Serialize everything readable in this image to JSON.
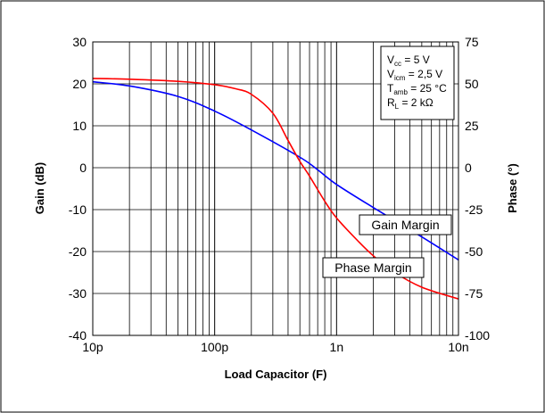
{
  "chart_data": {
    "type": "line",
    "xlabel": "Load Capacitor (F)",
    "ylabel_left": "Gain (dB)",
    "ylabel_right": "Phase (°)",
    "x_scale": "log",
    "xlim": [
      1e-11,
      1e-08
    ],
    "x_tick_labels": [
      "10p",
      "100p",
      "1n",
      "10n"
    ],
    "ylim_left": [
      -40,
      30
    ],
    "y_left_ticks": [
      "30",
      "20",
      "10",
      "0",
      "-10",
      "-20",
      "-30",
      "-40"
    ],
    "ylim_right": [
      -100,
      75
    ],
    "y_right_ticks": [
      "75",
      "50",
      "25",
      "0",
      "-25",
      "-50",
      "-75",
      "-100"
    ],
    "grid": true,
    "conditions": {
      "lines": [
        {
          "main": "V",
          "sub": "cc",
          "rest": " = 5 V"
        },
        {
          "main": "V",
          "sub": "icm",
          "rest": " = 2,5 V"
        },
        {
          "main": "T",
          "sub": "amb",
          "rest": " = 25 °C"
        },
        {
          "main": "R",
          "sub": "L",
          "rest": " = 2 kΩ"
        }
      ]
    },
    "annotations": [
      "Gain Margin",
      "Phase Margin"
    ],
    "series": [
      {
        "label": "Gain Margin",
        "color": "#0000ff",
        "axis": "left",
        "x": [
          1e-11,
          2e-11,
          5e-11,
          1e-10,
          2e-10,
          5e-10,
          7e-10,
          1e-09,
          2e-09,
          5e-09,
          1e-08
        ],
        "y": [
          20.5,
          19.5,
          17,
          13.5,
          9,
          2.5,
          -0.5,
          -4,
          -9.5,
          -16.5,
          -22
        ]
      },
      {
        "label": "Phase Margin",
        "color": "#ff0000",
        "axis": "left",
        "x": [
          1e-11,
          2e-11,
          5e-11,
          1e-10,
          1.5e-10,
          2e-10,
          3e-10,
          4e-10,
          5e-10,
          6e-10,
          8e-10,
          1e-09,
          1.5e-09,
          2e-09,
          3e-09,
          5e-09,
          1e-08
        ],
        "y": [
          21.3,
          21.1,
          20.6,
          19.8,
          18.8,
          17.5,
          13,
          6.5,
          1.5,
          -2,
          -8,
          -12,
          -17.5,
          -21,
          -25,
          -28.5,
          -31.3
        ]
      }
    ]
  }
}
